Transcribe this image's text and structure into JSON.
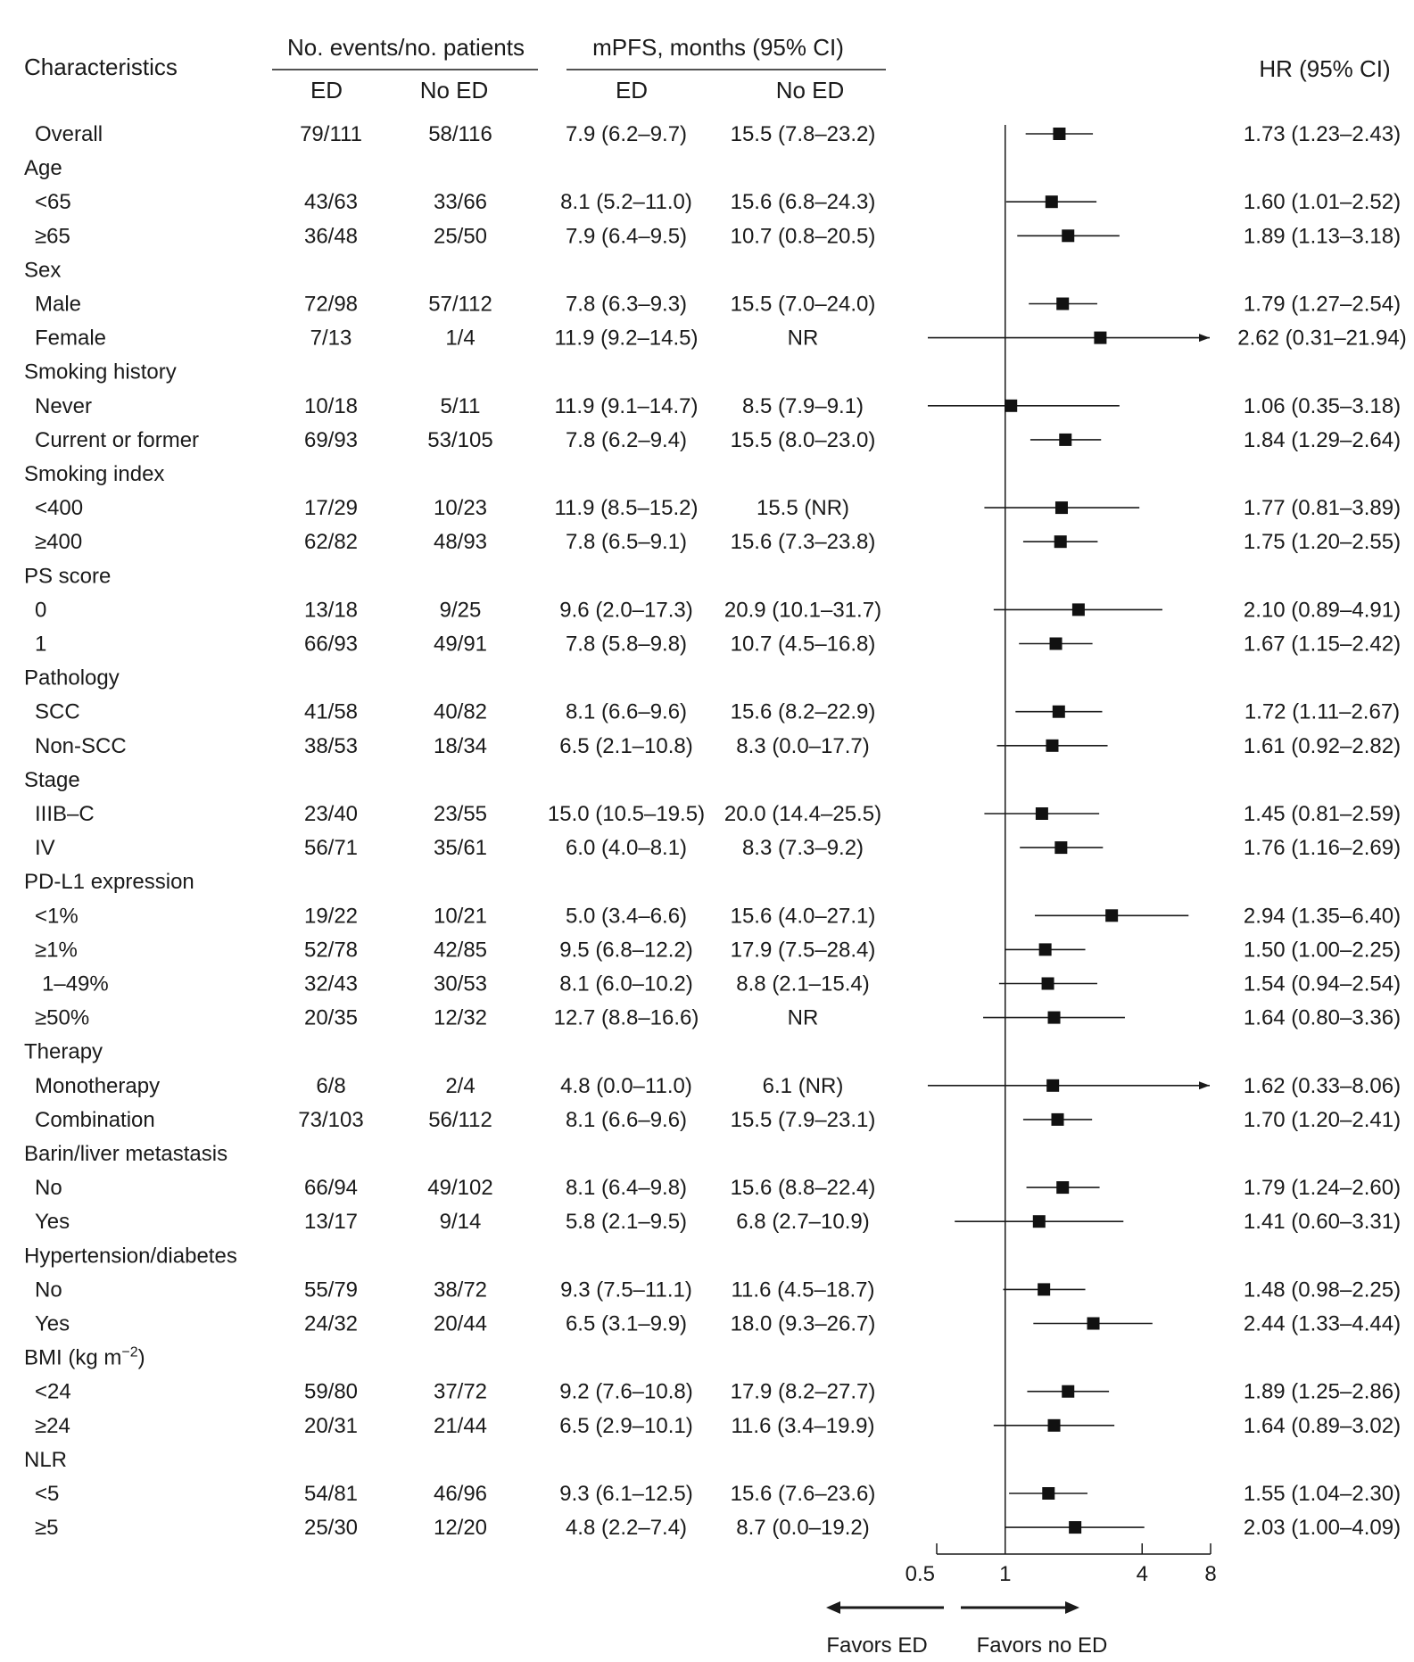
{
  "chart_data": {
    "type": "forest",
    "headers": {
      "characteristics": "Characteristics",
      "events_group": "No. events/no. patients",
      "mpfs_group": "mPFS, months (95% CI)",
      "ed": "ED",
      "no_ed": "No ED",
      "hr": "HR (95% CI)"
    },
    "rows": [
      {
        "label": "Overall",
        "kind": "item",
        "ev_ed": "79/111",
        "ev_no": "58/116",
        "pfs_ed": "7.9 (6.2–9.7)",
        "pfs_no": "15.5 (7.8–23.2)",
        "hr_text": "1.73 (1.23–2.43)",
        "hr": 1.73,
        "lo": 1.23,
        "hi": 2.43
      },
      {
        "label": "Age",
        "kind": "header"
      },
      {
        "label": "<65",
        "kind": "item",
        "ev_ed": "43/63",
        "ev_no": "33/66",
        "pfs_ed": "8.1 (5.2–11.0)",
        "pfs_no": "15.6 (6.8–24.3)",
        "hr_text": "1.60 (1.01–2.52)",
        "hr": 1.6,
        "lo": 1.01,
        "hi": 2.52
      },
      {
        "label": "≥65",
        "kind": "item",
        "ev_ed": "36/48",
        "ev_no": "25/50",
        "pfs_ed": "7.9 (6.4–9.5)",
        "pfs_no": "10.7 (0.8–20.5)",
        "hr_text": "1.89 (1.13–3.18)",
        "hr": 1.89,
        "lo": 1.13,
        "hi": 3.18
      },
      {
        "label": "Sex",
        "kind": "header"
      },
      {
        "label": "Male",
        "kind": "item",
        "ev_ed": "72/98",
        "ev_no": "57/112",
        "pfs_ed": "7.8 (6.3–9.3)",
        "pfs_no": "15.5 (7.0–24.0)",
        "hr_text": "1.79 (1.27–2.54)",
        "hr": 1.79,
        "lo": 1.27,
        "hi": 2.54
      },
      {
        "label": "Female",
        "kind": "item",
        "ev_ed": "7/13",
        "ev_no": "1/4",
        "pfs_ed": "11.9 (9.2–14.5)",
        "pfs_no": "NR",
        "hr_text": "2.62 (0.31–21.94)",
        "hr": 2.62,
        "lo": 0.31,
        "hi": 21.94
      },
      {
        "label": "Smoking history",
        "kind": "header"
      },
      {
        "label": "Never",
        "kind": "item",
        "ev_ed": "10/18",
        "ev_no": "5/11",
        "pfs_ed": "11.9 (9.1–14.7)",
        "pfs_no": "8.5 (7.9–9.1)",
        "hr_text": "1.06 (0.35–3.18)",
        "hr": 1.06,
        "lo": 0.35,
        "hi": 3.18
      },
      {
        "label": "Current or former",
        "kind": "item",
        "ev_ed": "69/93",
        "ev_no": "53/105",
        "pfs_ed": "7.8 (6.2–9.4)",
        "pfs_no": "15.5 (8.0–23.0)",
        "hr_text": "1.84 (1.29–2.64)",
        "hr": 1.84,
        "lo": 1.29,
        "hi": 2.64
      },
      {
        "label": "Smoking index",
        "kind": "header"
      },
      {
        "label": "<400",
        "kind": "item",
        "ev_ed": "17/29",
        "ev_no": "10/23",
        "pfs_ed": "11.9 (8.5–15.2)",
        "pfs_no": "15.5 (NR)",
        "hr_text": "1.77 (0.81–3.89)",
        "hr": 1.77,
        "lo": 0.81,
        "hi": 3.89
      },
      {
        "label": "≥400",
        "kind": "item",
        "ev_ed": "62/82",
        "ev_no": "48/93",
        "pfs_ed": "7.8 (6.5–9.1)",
        "pfs_no": "15.6 (7.3–23.8)",
        "hr_text": "1.75 (1.20–2.55)",
        "hr": 1.75,
        "lo": 1.2,
        "hi": 2.55
      },
      {
        "label": "PS score",
        "kind": "header"
      },
      {
        "label": "0",
        "kind": "item",
        "ev_ed": "13/18",
        "ev_no": "9/25",
        "pfs_ed": "9.6 (2.0–17.3)",
        "pfs_no": "20.9 (10.1–31.7)",
        "hr_text": "2.10 (0.89–4.91)",
        "hr": 2.1,
        "lo": 0.89,
        "hi": 4.91
      },
      {
        "label": "1",
        "kind": "item",
        "ev_ed": "66/93",
        "ev_no": "49/91",
        "pfs_ed": "7.8 (5.8–9.8)",
        "pfs_no": "10.7 (4.5–16.8)",
        "hr_text": "1.67 (1.15–2.42)",
        "hr": 1.67,
        "lo": 1.15,
        "hi": 2.42
      },
      {
        "label": "Pathology",
        "kind": "header"
      },
      {
        "label": "SCC",
        "kind": "item",
        "ev_ed": "41/58",
        "ev_no": "40/82",
        "pfs_ed": "8.1 (6.6–9.6)",
        "pfs_no": "15.6 (8.2–22.9)",
        "hr_text": "1.72 (1.11–2.67)",
        "hr": 1.72,
        "lo": 1.11,
        "hi": 2.67
      },
      {
        "label": "Non-SCC",
        "kind": "item",
        "ev_ed": "38/53",
        "ev_no": "18/34",
        "pfs_ed": "6.5 (2.1–10.8)",
        "pfs_no": "8.3 (0.0–17.7)",
        "hr_text": "1.61 (0.92–2.82)",
        "hr": 1.61,
        "lo": 0.92,
        "hi": 2.82
      },
      {
        "label": "Stage",
        "kind": "header"
      },
      {
        "label": "IIIB–C",
        "kind": "item",
        "ev_ed": "23/40",
        "ev_no": "23/55",
        "pfs_ed": "15.0 (10.5–19.5)",
        "pfs_no": "20.0 (14.4–25.5)",
        "hr_text": "1.45 (0.81–2.59)",
        "hr": 1.45,
        "lo": 0.81,
        "hi": 2.59
      },
      {
        "label": "IV",
        "kind": "item",
        "ev_ed": "56/71",
        "ev_no": "35/61",
        "pfs_ed": "6.0 (4.0–8.1)",
        "pfs_no": "8.3 (7.3–9.2)",
        "hr_text": "1.76 (1.16–2.69)",
        "hr": 1.76,
        "lo": 1.16,
        "hi": 2.69
      },
      {
        "label": "PD-L1 expression",
        "kind": "header"
      },
      {
        "label": "<1%",
        "kind": "item",
        "ev_ed": "19/22",
        "ev_no": "10/21",
        "pfs_ed": "5.0 (3.4–6.6)",
        "pfs_no": "15.6 (4.0–27.1)",
        "hr_text": "2.94 (1.35–6.40)",
        "hr": 2.94,
        "lo": 1.35,
        "hi": 6.4
      },
      {
        "label": "≥1%",
        "kind": "item",
        "ev_ed": "52/78",
        "ev_no": "42/85",
        "pfs_ed": "9.5 (6.8–12.2)",
        "pfs_no": "17.9 (7.5–28.4)",
        "hr_text": "1.50 (1.00–2.25)",
        "hr": 1.5,
        "lo": 1.0,
        "hi": 2.25
      },
      {
        "label": "1–49%",
        "kind": "item",
        "indent": 2,
        "ev_ed": "32/43",
        "ev_no": "30/53",
        "pfs_ed": "8.1 (6.0–10.2)",
        "pfs_no": "8.8 (2.1–15.4)",
        "hr_text": "1.54 (0.94–2.54)",
        "hr": 1.54,
        "lo": 0.94,
        "hi": 2.54
      },
      {
        "label": "≥50%",
        "kind": "item",
        "ev_ed": "20/35",
        "ev_no": "12/32",
        "pfs_ed": "12.7 (8.8–16.6)",
        "pfs_no": "NR",
        "hr_text": "1.64 (0.80–3.36)",
        "hr": 1.64,
        "lo": 0.8,
        "hi": 3.36
      },
      {
        "label": "Therapy",
        "kind": "header"
      },
      {
        "label": "Monotherapy",
        "kind": "item",
        "ev_ed": "6/8",
        "ev_no": "2/4",
        "pfs_ed": "4.8 (0.0–11.0)",
        "pfs_no": "6.1 (NR)",
        "hr_text": "1.62 (0.33–8.06)",
        "hr": 1.62,
        "lo": 0.33,
        "hi": 8.06
      },
      {
        "label": "Combination",
        "kind": "item",
        "ev_ed": "73/103",
        "ev_no": "56/112",
        "pfs_ed": "8.1 (6.6–9.6)",
        "pfs_no": "15.5 (7.9–23.1)",
        "hr_text": "1.70 (1.20–2.41)",
        "hr": 1.7,
        "lo": 1.2,
        "hi": 2.41
      },
      {
        "label": "Barin/liver metastasis",
        "kind": "header"
      },
      {
        "label": "No",
        "kind": "item",
        "ev_ed": "66/94",
        "ev_no": "49/102",
        "pfs_ed": "8.1 (6.4–9.8)",
        "pfs_no": "15.6 (8.8–22.4)",
        "hr_text": "1.79 (1.24–2.60)",
        "hr": 1.79,
        "lo": 1.24,
        "hi": 2.6
      },
      {
        "label": "Yes",
        "kind": "item",
        "ev_ed": "13/17",
        "ev_no": "9/14",
        "pfs_ed": "5.8 (2.1–9.5)",
        "pfs_no": "6.8 (2.7–10.9)",
        "hr_text": "1.41 (0.60–3.31)",
        "hr": 1.41,
        "lo": 0.6,
        "hi": 3.31
      },
      {
        "label": "Hypertension/diabetes",
        "kind": "header"
      },
      {
        "label": "No",
        "kind": "item",
        "ev_ed": "55/79",
        "ev_no": "38/72",
        "pfs_ed": "9.3 (7.5–11.1)",
        "pfs_no": "11.6 (4.5–18.7)",
        "hr_text": "1.48 (0.98–2.25)",
        "hr": 1.48,
        "lo": 0.98,
        "hi": 2.25
      },
      {
        "label": "Yes",
        "kind": "item",
        "ev_ed": "24/32",
        "ev_no": "20/44",
        "pfs_ed": "6.5 (3.1–9.9)",
        "pfs_no": "18.0 (9.3–26.7)",
        "hr_text": "2.44 (1.33–4.44)",
        "hr": 2.44,
        "lo": 1.33,
        "hi": 4.44
      },
      {
        "label": "BMI (kg m",
        "label_sup": "−2",
        "label_end": ")",
        "kind": "header"
      },
      {
        "label": "<24",
        "kind": "item",
        "ev_ed": "59/80",
        "ev_no": "37/72",
        "pfs_ed": "9.2 (7.6–10.8)",
        "pfs_no": "17.9 (8.2–27.7)",
        "hr_text": "1.89 (1.25–2.86)",
        "hr": 1.89,
        "lo": 1.25,
        "hi": 2.86
      },
      {
        "label": "≥24",
        "kind": "item",
        "ev_ed": "20/31",
        "ev_no": "21/44",
        "pfs_ed": "6.5 (2.9–10.1)",
        "pfs_no": "11.6 (3.4–19.9)",
        "hr_text": "1.64 (0.89–3.02)",
        "hr": 1.64,
        "lo": 0.89,
        "hi": 3.02
      },
      {
        "label": "NLR",
        "kind": "header"
      },
      {
        "label": "<5",
        "kind": "item",
        "ev_ed": "54/81",
        "ev_no": "46/96",
        "pfs_ed": "9.3 (6.1–12.5)",
        "pfs_no": "15.6 (7.6–23.6)",
        "hr_text": "1.55 (1.04–2.30)",
        "hr": 1.55,
        "lo": 1.04,
        "hi": 2.3
      },
      {
        "label": "≥5",
        "kind": "item",
        "ev_ed": "25/30",
        "ev_no": "12/20",
        "pfs_ed": "4.8 (2.2–7.4)",
        "pfs_no": "8.7 (0.0–19.2)",
        "hr_text": "2.03 (1.00–4.09)",
        "hr": 2.03,
        "lo": 1.0,
        "hi": 4.09
      }
    ],
    "x_axis": {
      "scale": "log2",
      "range": [
        0.5,
        8
      ],
      "ticks": [
        0.5,
        1,
        4,
        8
      ],
      "tick_labels": [
        "0.5",
        "1",
        "4",
        "8"
      ],
      "reference": 1
    },
    "favors_left": "Favors ED",
    "favors_right": "Favors no ED"
  }
}
